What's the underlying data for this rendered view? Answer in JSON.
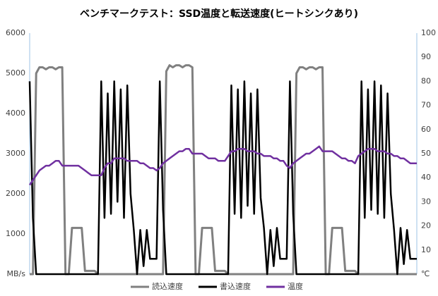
{
  "chart_data": {
    "type": "line",
    "title": "ベンチマークテスト：SSD温度と転送速度(ヒートシンクあり)",
    "ylim": [
      0,
      6000
    ],
    "yticks": [
      {
        "value": 0,
        "label": "MB/s"
      },
      1000,
      2000,
      3000,
      4000,
      5000,
      6000
    ],
    "y2lim": [
      0,
      100
    ],
    "y2ticks": [
      {
        "value": 0,
        "label": "℃"
      },
      10,
      20,
      30,
      40,
      50,
      60,
      70,
      80,
      90,
      100
    ],
    "grid": false,
    "legend": "bottom",
    "series": [
      {
        "name": "読込速度",
        "color": "#808080",
        "values": [
          0,
          0,
          5000,
          5150,
          5150,
          5100,
          5150,
          5150,
          5100,
          5150,
          5150,
          0,
          0,
          1150,
          1150,
          1150,
          1150,
          80,
          80,
          80,
          80,
          0,
          0,
          0,
          0,
          0,
          0,
          0,
          0,
          0,
          0,
          0,
          0,
          0,
          0,
          0,
          0,
          0,
          0,
          0,
          0,
          0,
          5050,
          5200,
          5150,
          5200,
          5200,
          5150,
          5200,
          5200,
          5150,
          0,
          0,
          1150,
          1150,
          1150,
          1150,
          80,
          80,
          80,
          80,
          0,
          0,
          0,
          0,
          0,
          0,
          0,
          0,
          0,
          0,
          0,
          0,
          0,
          0,
          0,
          0,
          0,
          0,
          0,
          0,
          0,
          5000,
          5150,
          5150,
          5100,
          5150,
          5150,
          5100,
          5150,
          5150,
          0,
          0,
          1150,
          1150,
          1150,
          1150,
          80,
          80,
          80,
          80,
          0,
          0,
          0,
          0,
          0,
          0,
          0,
          0,
          0,
          0,
          0,
          0,
          0,
          0,
          0,
          0,
          0,
          0,
          0
        ]
      },
      {
        "name": "書込速度",
        "color": "#000000",
        "values": [
          4800,
          1400,
          0,
          0,
          0,
          0,
          0,
          0,
          0,
          0,
          0,
          0,
          0,
          0,
          0,
          0,
          0,
          0,
          0,
          0,
          0,
          0,
          4800,
          1400,
          4500,
          1500,
          4800,
          1800,
          4600,
          1400,
          4700,
          2000,
          1100,
          0,
          1100,
          200,
          1100,
          380,
          380,
          380,
          4800,
          1600,
          0,
          0,
          0,
          0,
          0,
          0,
          0,
          0,
          0,
          0,
          0,
          0,
          0,
          0,
          0,
          0,
          0,
          0,
          0,
          0,
          4700,
          1500,
          4600,
          1400,
          4800,
          1700,
          4500,
          1500,
          4600,
          1900,
          1150,
          0,
          1100,
          200,
          1150,
          380,
          380,
          380,
          4800,
          1500,
          0,
          0,
          0,
          0,
          0,
          0,
          0,
          0,
          0,
          0,
          0,
          0,
          0,
          0,
          0,
          0,
          0,
          0,
          0,
          0,
          4800,
          1400,
          4600,
          1600,
          4800,
          1500,
          4700,
          1400,
          4500,
          2000,
          1100,
          0,
          1150,
          250,
          1100,
          380,
          380,
          380
        ]
      },
      {
        "name": "温度",
        "color": "#7030a0",
        "axis": "y2",
        "values": [
          37,
          39,
          41,
          43,
          44,
          45,
          45,
          46,
          47,
          47,
          45,
          45,
          45,
          45,
          45,
          45,
          44,
          43,
          42,
          41,
          41,
          41,
          41,
          44,
          46,
          46,
          48,
          48,
          48,
          48,
          47,
          47,
          47,
          47,
          46,
          46,
          45,
          44,
          44,
          43,
          44,
          46,
          47,
          48,
          49,
          50,
          51,
          51,
          52,
          52,
          50,
          50,
          50,
          50,
          49,
          48,
          48,
          48,
          47,
          47,
          47,
          49,
          51,
          51,
          52,
          52,
          52,
          51,
          51,
          51,
          50,
          50,
          49,
          49,
          49,
          48,
          48,
          47,
          47,
          45,
          44,
          46,
          47,
          48,
          49,
          50,
          50,
          51,
          52,
          53,
          51,
          51,
          51,
          51,
          50,
          49,
          48,
          48,
          47,
          47,
          46,
          49,
          50,
          51,
          52,
          52,
          52,
          51,
          51,
          51,
          50,
          50,
          49,
          49,
          48,
          48,
          47,
          46,
          46,
          46
        ]
      }
    ]
  }
}
